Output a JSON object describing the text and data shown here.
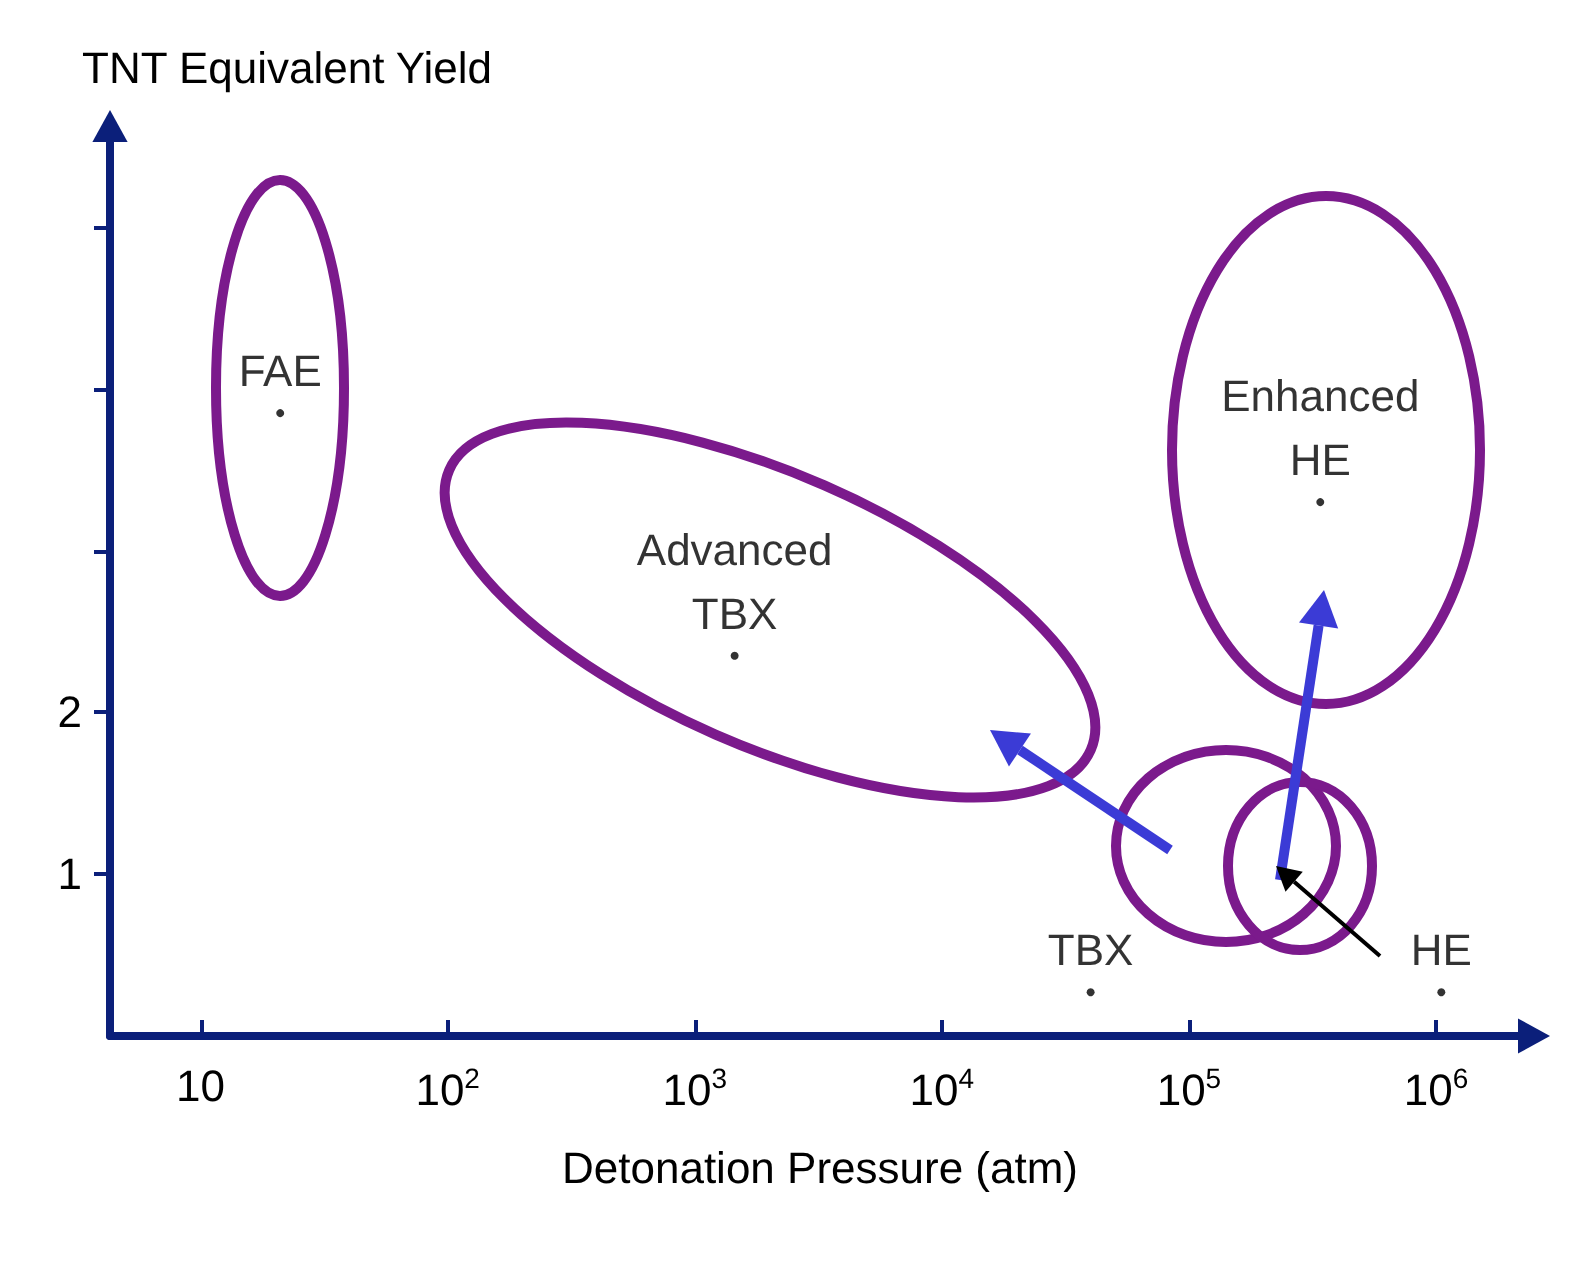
{
  "chart_data": {
    "type": "scatter",
    "xlabel": "Detonation Pressure (atm)",
    "ylabel": "TNT Equivalent Yield",
    "log": "x",
    "marker": "circle",
    "xlim": [
      4.3,
      2400000
    ],
    "ylim": [
      0,
      5.6
    ],
    "xticks": [
      10,
      {
        "value": 100,
        "label": "10$^{2}$"
      },
      {
        "value": 1000,
        "label": "10$^{3}$"
      },
      {
        "value": 10000,
        "label": "10$^{4}$"
      },
      {
        "value": 100000,
        "label": "10$^{5}$"
      },
      {
        "value": 1000000,
        "label": "10$^{6}$"
      }
    ],
    "yticks": [
      1,
      2,
      {
        "value": 3,
        "label": null
      },
      {
        "value": 4,
        "label": null
      },
      {
        "value": 5,
        "label": null
      }
    ],
    "series": [
      {
        "color": "#000000",
        "x": [
          21,
          1450,
          340000,
          40000,
          1050000
        ],
        "values": [
          3.85,
          2.35,
          3.3,
          0.27,
          0.27
        ],
        "value_labels": [
          "FAE",
          "Advanced\nTBX",
          "Enhanced\nHE",
          "TBX",
          "HE"
        ]
      }
    ]
  }
}
